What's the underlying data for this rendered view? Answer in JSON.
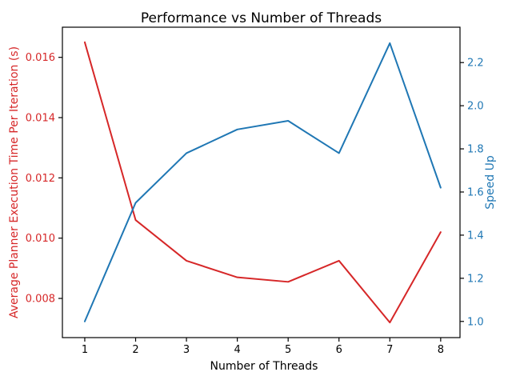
{
  "chart_data": {
    "type": "line",
    "title": "Performance vs Number of Threads",
    "xlabel": "Number of Threads",
    "ylabel_left": "Average Planner Execution Time Per Iteration (s)",
    "ylabel_right": "Speed Up",
    "x": [
      1,
      2,
      3,
      4,
      5,
      6,
      7,
      8
    ],
    "series": [
      {
        "name": "Average Planner Execution Time Per Iteration (s)",
        "axis": "left",
        "color": "#d62728",
        "values": [
          0.0165,
          0.0106,
          0.00925,
          0.0087,
          0.00855,
          0.00925,
          0.0072,
          0.0102
        ]
      },
      {
        "name": "Speed Up",
        "axis": "right",
        "color": "#1f77b4",
        "values": [
          1.0,
          1.55,
          1.78,
          1.89,
          1.93,
          1.78,
          2.29,
          1.62
        ]
      }
    ],
    "xlim": [
      0.56,
      8.38
    ],
    "ylim_left": [
      0.0067,
      0.017
    ],
    "ylim_right": [
      0.925,
      2.364
    ],
    "xticks": {
      "values": [
        1,
        2,
        3,
        4,
        5,
        6,
        7,
        8
      ],
      "labels": [
        "1",
        "2",
        "3",
        "4",
        "5",
        "6",
        "7",
        "8"
      ]
    },
    "yticks_left": {
      "values": [
        0.008,
        0.01,
        0.012,
        0.014,
        0.016
      ],
      "labels": [
        "0.008",
        "0.010",
        "0.012",
        "0.014",
        "0.016"
      ]
    },
    "yticks_right": {
      "values": [
        1.0,
        1.2,
        1.4,
        1.6,
        1.8,
        2.0,
        2.2
      ],
      "labels": [
        "1.0",
        "1.2",
        "1.4",
        "1.6",
        "1.8",
        "2.0",
        "2.2"
      ]
    },
    "colors": {
      "left_axis": "#d62728",
      "right_axis": "#1f77b4",
      "axis": "#000000"
    },
    "grid": false,
    "legend": "none"
  }
}
